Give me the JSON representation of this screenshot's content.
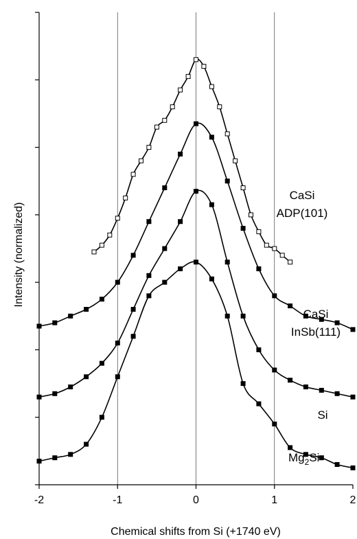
{
  "chart_data": {
    "type": "scatter",
    "xlabel": "Chemical shifts from Si (+1740 eV)",
    "ylabel": "Intensity (normalized)",
    "xlim": [
      -2,
      2
    ],
    "ylim": [
      0,
      7
    ],
    "x_ticks": [
      -2,
      -1,
      0,
      1,
      2
    ],
    "x_tick_labels": [
      "-2",
      "-1",
      "0",
      "1",
      "2"
    ],
    "y_ticks": [
      0,
      1,
      2,
      3,
      4,
      5,
      6,
      7
    ],
    "y_tick_labels_shown": false,
    "vertical_gridlines_at": [
      -1,
      0,
      1
    ],
    "series": [
      {
        "name": "CaSi ADP(101)",
        "label_lines": [
          "CaSi",
          "ADP(101)"
        ],
        "marker": "open-square",
        "fit_line": true,
        "x": [
          -1.3,
          -1.2,
          -1.1,
          -1.0,
          -0.9,
          -0.8,
          -0.7,
          -0.6,
          -0.5,
          -0.4,
          -0.3,
          -0.2,
          -0.1,
          0.0,
          0.1,
          0.2,
          0.3,
          0.4,
          0.5,
          0.6,
          0.7,
          0.8,
          0.9,
          1.0,
          1.1,
          1.2
        ],
        "y": [
          3.45,
          3.55,
          3.7,
          3.95,
          4.25,
          4.6,
          4.8,
          5.0,
          5.3,
          5.4,
          5.6,
          5.85,
          6.05,
          6.3,
          6.2,
          5.9,
          5.6,
          5.2,
          4.8,
          4.4,
          4.0,
          3.75,
          3.55,
          3.5,
          3.4,
          3.3
        ]
      },
      {
        "name": "CaSi InSb(111)",
        "label_lines": [
          "CaSi",
          "InSb(111)"
        ],
        "marker": "filled-square",
        "fit_line": true,
        "x": [
          -2.0,
          -1.8,
          -1.6,
          -1.4,
          -1.2,
          -1.0,
          -0.8,
          -0.6,
          -0.4,
          -0.2,
          0.0,
          0.2,
          0.4,
          0.6,
          0.8,
          1.0,
          1.2,
          1.4,
          1.6,
          1.8,
          2.0
        ],
        "y": [
          2.35,
          2.4,
          2.5,
          2.6,
          2.75,
          3.0,
          3.4,
          3.9,
          4.4,
          4.9,
          5.35,
          5.15,
          4.5,
          3.8,
          3.2,
          2.8,
          2.65,
          2.5,
          2.45,
          2.4,
          2.3
        ]
      },
      {
        "name": "Si",
        "label_lines": [
          "Si"
        ],
        "marker": "filled-square",
        "fit_line": true,
        "x": [
          -2.0,
          -1.8,
          -1.6,
          -1.4,
          -1.2,
          -1.0,
          -0.8,
          -0.6,
          -0.4,
          -0.2,
          0.0,
          0.2,
          0.4,
          0.6,
          0.8,
          1.0,
          1.2,
          1.4,
          1.6,
          1.8,
          2.0
        ],
        "y": [
          1.3,
          1.35,
          1.45,
          1.6,
          1.8,
          2.1,
          2.6,
          3.1,
          3.5,
          3.9,
          4.35,
          4.15,
          3.3,
          2.5,
          2.0,
          1.7,
          1.55,
          1.45,
          1.4,
          1.35,
          1.3
        ]
      },
      {
        "name": "Mg2Si",
        "label_lines": [
          "Mg2Si"
        ],
        "label_main": "Mg",
        "label_sub": "2",
        "label_tail": "Si",
        "marker": "filled-square",
        "fit_line": true,
        "x": [
          -2.0,
          -1.8,
          -1.6,
          -1.4,
          -1.2,
          -1.0,
          -0.8,
          -0.6,
          -0.4,
          -0.2,
          0.0,
          0.2,
          0.4,
          0.6,
          0.8,
          1.0,
          1.2,
          1.4,
          1.6,
          1.8,
          2.0
        ],
        "y": [
          0.35,
          0.4,
          0.45,
          0.6,
          1.0,
          1.6,
          2.2,
          2.8,
          3.0,
          3.2,
          3.3,
          3.05,
          2.5,
          1.5,
          1.2,
          0.9,
          0.55,
          0.45,
          0.4,
          0.3,
          0.25
        ]
      }
    ]
  }
}
